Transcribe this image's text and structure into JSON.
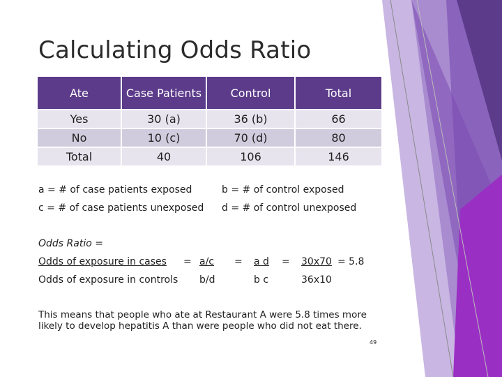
{
  "title": "Calculating Odds Ratio",
  "table": {
    "headers": [
      "Ate",
      "Case Patients",
      "Control",
      "Total"
    ],
    "rows": [
      [
        "Yes",
        "30 (a)",
        "36 (b)",
        "66"
      ],
      [
        "No",
        "10 (c)",
        "70 (d)",
        "80"
      ],
      [
        "Total",
        "40",
        "106",
        "146"
      ]
    ]
  },
  "definitions": {
    "a": "a = # of case patients exposed",
    "b": "b = # of control exposed",
    "c": "c = # of case patients unexposed",
    "d": "d = # of control unexposed"
  },
  "formula": {
    "label": "Odds Ratio =",
    "numerator_text": "Odds of exposure in cases",
    "denominator_text": "Odds of exposure in controls",
    "eq1": "=",
    "a_over_c": "a/c",
    "b_over_d": "b/d",
    "eq2": "=",
    "ad": "a d",
    "bc": "b c",
    "eq3": "=",
    "num_value": "30x70",
    "result": "= 5.8",
    "den_value": "36x10"
  },
  "conclusion": "This means that people who ate at Restaurant A were 5.8 times more likely to develop hepatitis A than were people who did not eat there.",
  "page_number": "49",
  "colors": {
    "header_bg": "#5c3b8a",
    "row_light": "#e7e4ee",
    "row_dark": "#d1ccdd",
    "accent_purple": "#7a3fb0"
  }
}
